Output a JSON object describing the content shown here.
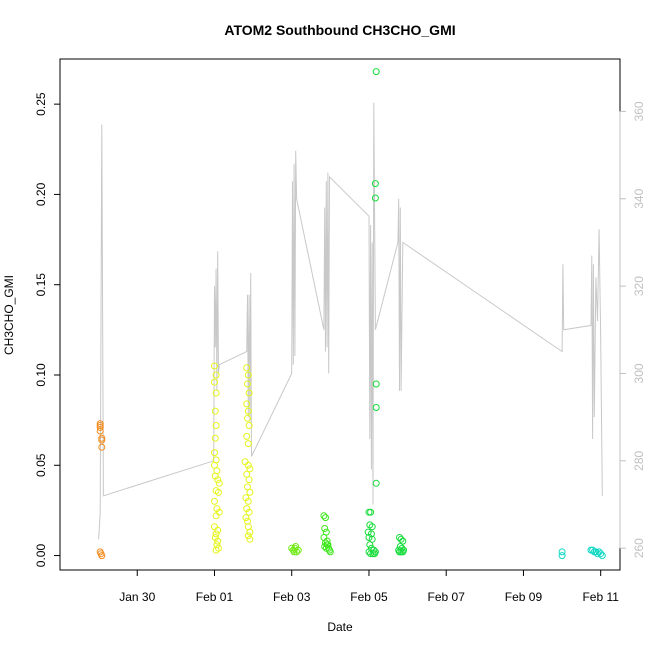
{
  "chart_data": {
    "type": "scatter",
    "title": "ATOM2 Southbound CH3CHO_GMI",
    "xlabel": "Date",
    "ylabel": "CH3CHO_GMI",
    "xlim": [
      "2017-01-28T00:00",
      "2017-02-11T12:00"
    ],
    "ylim": [
      -0.008,
      0.275
    ],
    "y2lim": [
      255,
      372
    ],
    "x_ticks": [
      {
        "date": "2017-01-30",
        "label": "Jan 30"
      },
      {
        "date": "2017-02-01",
        "label": "Feb 01"
      },
      {
        "date": "2017-02-03",
        "label": "Feb 03"
      },
      {
        "date": "2017-02-05",
        "label": "Feb 05"
      },
      {
        "date": "2017-02-07",
        "label": "Feb 07"
      },
      {
        "date": "2017-02-09",
        "label": "Feb 09"
      },
      {
        "date": "2017-02-11",
        "label": "Feb 11"
      }
    ],
    "y_ticks": [
      {
        "value": 0.0,
        "label": "0.00"
      },
      {
        "value": 0.05,
        "label": "0.05"
      },
      {
        "value": 0.1,
        "label": "0.10"
      },
      {
        "value": 0.15,
        "label": "0.15"
      },
      {
        "value": 0.2,
        "label": "0.20"
      },
      {
        "value": 0.25,
        "label": "0.25"
      }
    ],
    "y2_ticks": [
      {
        "value": 260,
        "label": "260"
      },
      {
        "value": 280,
        "label": "280"
      },
      {
        "value": 300,
        "label": "300"
      },
      {
        "value": 320,
        "label": "320"
      },
      {
        "value": 340,
        "label": "340"
      },
      {
        "value": 360,
        "label": "360"
      }
    ],
    "grid": false,
    "line_color": "#c8c8c8",
    "point_groups": [
      {
        "color": "#f28c1e",
        "points": [
          [
            "2017-01-29T01:00",
            0.073
          ],
          [
            "2017-01-29T01:00",
            0.071
          ],
          [
            "2017-01-29T01:00",
            0.069
          ],
          [
            "2017-01-29T01:00",
            0.072
          ],
          [
            "2017-01-29T02:00",
            0.064
          ],
          [
            "2017-01-29T02:00",
            0.065
          ],
          [
            "2017-01-29T02:00",
            0.06
          ],
          [
            "2017-01-29T01:00",
            0.002
          ],
          [
            "2017-01-29T01:30",
            0.001
          ],
          [
            "2017-01-29T02:00",
            0.0
          ]
        ]
      },
      {
        "color": "#e5f51a",
        "points": [
          [
            "2017-02-01T00:00",
            0.105
          ],
          [
            "2017-02-01T01:00",
            0.1
          ],
          [
            "2017-02-01T00:00",
            0.096
          ],
          [
            "2017-02-01T01:00",
            0.09
          ],
          [
            "2017-02-01T00:30",
            0.08
          ],
          [
            "2017-02-01T01:00",
            0.072
          ],
          [
            "2017-02-01T00:30",
            0.065
          ],
          [
            "2017-02-01T00:00",
            0.057
          ],
          [
            "2017-02-01T01:00",
            0.053
          ],
          [
            "2017-02-01T00:00",
            0.05
          ],
          [
            "2017-02-01T01:30",
            0.047
          ],
          [
            "2017-02-01T00:30",
            0.044
          ],
          [
            "2017-02-01T02:00",
            0.042
          ],
          [
            "2017-02-01T03:00",
            0.04
          ],
          [
            "2017-02-01T01:00",
            0.036
          ],
          [
            "2017-02-01T02:30",
            0.035
          ],
          [
            "2017-02-01T00:00",
            0.03
          ],
          [
            "2017-02-01T01:30",
            0.026
          ],
          [
            "2017-02-01T03:00",
            0.024
          ],
          [
            "2017-02-01T01:00",
            0.022
          ],
          [
            "2017-02-01T00:00",
            0.016
          ],
          [
            "2017-02-01T02:00",
            0.014
          ],
          [
            "2017-02-01T01:00",
            0.012
          ],
          [
            "2017-02-01T00:30",
            0.01
          ],
          [
            "2017-02-01T02:00",
            0.008
          ],
          [
            "2017-02-01T01:30",
            0.006
          ],
          [
            "2017-02-01T02:30",
            0.004
          ],
          [
            "2017-02-01T01:00",
            0.003
          ],
          [
            "2017-02-01T20:00",
            0.104
          ],
          [
            "2017-02-01T21:00",
            0.1
          ],
          [
            "2017-02-01T20:30",
            0.095
          ],
          [
            "2017-02-01T21:30",
            0.09
          ],
          [
            "2017-02-01T20:00",
            0.084
          ],
          [
            "2017-02-01T21:00",
            0.08
          ],
          [
            "2017-02-01T20:30",
            0.076
          ],
          [
            "2017-02-01T21:30",
            0.072
          ],
          [
            "2017-02-01T20:00",
            0.066
          ],
          [
            "2017-02-01T21:00",
            0.062
          ],
          [
            "2017-02-01T19:00",
            0.052
          ],
          [
            "2017-02-01T21:00",
            0.05
          ],
          [
            "2017-02-01T22:00",
            0.048
          ],
          [
            "2017-02-01T20:00",
            0.045
          ],
          [
            "2017-02-01T21:30",
            0.042
          ],
          [
            "2017-02-01T20:30",
            0.038
          ],
          [
            "2017-02-01T22:00",
            0.035
          ],
          [
            "2017-02-01T19:30",
            0.032
          ],
          [
            "2017-02-01T21:00",
            0.03
          ],
          [
            "2017-02-01T20:00",
            0.026
          ],
          [
            "2017-02-01T21:30",
            0.024
          ],
          [
            "2017-02-01T19:30",
            0.021
          ],
          [
            "2017-02-01T20:30",
            0.019
          ],
          [
            "2017-02-01T21:00",
            0.016
          ],
          [
            "2017-02-01T22:00",
            0.013
          ],
          [
            "2017-02-01T21:00",
            0.011
          ],
          [
            "2017-02-01T22:00",
            0.009
          ]
        ]
      },
      {
        "color": "#6fea12",
        "points": [
          [
            "2017-02-03T00:00",
            0.004
          ],
          [
            "2017-02-03T01:00",
            0.003
          ],
          [
            "2017-02-03T02:00",
            0.004
          ],
          [
            "2017-02-03T03:00",
            0.002
          ],
          [
            "2017-02-03T04:00",
            0.003
          ],
          [
            "2017-02-03T02:30",
            0.005
          ],
          [
            "2017-02-03T01:30",
            0.002
          ]
        ]
      },
      {
        "color": "#3de81c",
        "points": [
          [
            "2017-02-03T20:00",
            0.022
          ],
          [
            "2017-02-03T21:00",
            0.021
          ],
          [
            "2017-02-03T20:30",
            0.015
          ],
          [
            "2017-02-03T21:30",
            0.013
          ],
          [
            "2017-02-03T20:00",
            0.01
          ],
          [
            "2017-02-03T22:00",
            0.008
          ],
          [
            "2017-02-03T21:00",
            0.007
          ],
          [
            "2017-02-03T22:30",
            0.006
          ],
          [
            "2017-02-03T20:30",
            0.005
          ],
          [
            "2017-02-03T23:00",
            0.004
          ],
          [
            "2017-02-03T21:30",
            0.004
          ],
          [
            "2017-02-03T23:30",
            0.003
          ],
          [
            "2017-02-04T00:00",
            0.002
          ],
          [
            "2017-02-03T22:00",
            0.006
          ]
        ]
      },
      {
        "color": "#16dc3a",
        "points": [
          [
            "2017-02-05T04:30",
            0.268
          ],
          [
            "2017-02-05T04:00",
            0.206
          ],
          [
            "2017-02-05T04:00",
            0.198
          ],
          [
            "2017-02-05T04:30",
            0.095
          ],
          [
            "2017-02-05T04:30",
            0.082
          ],
          [
            "2017-02-05T04:30",
            0.04
          ],
          [
            "2017-02-05T00:00",
            0.024
          ],
          [
            "2017-02-05T01:00",
            0.024
          ],
          [
            "2017-02-05T00:30",
            0.017
          ],
          [
            "2017-02-05T02:00",
            0.016
          ],
          [
            "2017-02-04T23:30",
            0.013
          ],
          [
            "2017-02-05T01:30",
            0.012
          ],
          [
            "2017-02-05T00:00",
            0.01
          ],
          [
            "2017-02-05T02:00",
            0.009
          ],
          [
            "2017-02-05T00:30",
            0.006
          ],
          [
            "2017-02-05T01:30",
            0.004
          ],
          [
            "2017-02-05T03:00",
            0.003
          ],
          [
            "2017-02-05T00:00",
            0.002
          ],
          [
            "2017-02-05T02:30",
            0.001
          ],
          [
            "2017-02-05T04:00",
            0.002
          ],
          [
            "2017-02-05T03:30",
            0.001
          ],
          [
            "2017-02-05T01:00",
            0.001
          ],
          [
            "2017-02-05T19:00",
            0.01
          ],
          [
            "2017-02-05T20:00",
            0.009
          ],
          [
            "2017-02-05T21:00",
            0.008
          ],
          [
            "2017-02-05T19:30",
            0.005
          ],
          [
            "2017-02-05T20:30",
            0.004
          ],
          [
            "2017-02-05T21:30",
            0.003
          ],
          [
            "2017-02-05T19:00",
            0.002
          ],
          [
            "2017-02-05T20:00",
            0.002
          ],
          [
            "2017-02-05T21:00",
            0.002
          ],
          [
            "2017-02-05T18:30",
            0.003
          ]
        ]
      },
      {
        "color": "#11d8c4",
        "points": [
          [
            "2017-02-10T00:00",
            0.002
          ],
          [
            "2017-02-10T00:00",
            0.0
          ],
          [
            "2017-02-10T18:00",
            0.003
          ],
          [
            "2017-02-10T19:00",
            0.003
          ],
          [
            "2017-02-10T20:00",
            0.002
          ],
          [
            "2017-02-10T21:00",
            0.002
          ],
          [
            "2017-02-10T22:00",
            0.001
          ],
          [
            "2017-02-10T23:00",
            0.002
          ],
          [
            "2017-02-11T00:00",
            0.001
          ],
          [
            "2017-02-11T01:00",
            0.0
          ]
        ]
      }
    ],
    "line_series": [
      [
        "2017-01-29T00:00",
        262
      ],
      [
        "2017-01-29T01:00",
        268
      ],
      [
        "2017-01-29T02:00",
        357
      ],
      [
        "2017-01-29T03:00",
        272
      ],
      [
        "2017-01-31T23:30",
        280
      ],
      [
        "2017-02-01T00:00",
        320
      ],
      [
        "2017-02-01T00:30",
        306
      ],
      [
        "2017-02-01T01:00",
        324
      ],
      [
        "2017-02-01T01:30",
        296
      ],
      [
        "2017-02-01T02:00",
        328
      ],
      [
        "2017-02-01T02:30",
        300
      ],
      [
        "2017-02-01T03:00",
        302
      ],
      [
        "2017-02-01T20:00",
        305
      ],
      [
        "2017-02-01T20:30",
        318
      ],
      [
        "2017-02-01T21:00",
        290
      ],
      [
        "2017-02-01T21:30",
        318
      ],
      [
        "2017-02-01T22:00",
        289
      ],
      [
        "2017-02-01T22:30",
        323
      ],
      [
        "2017-02-01T23:00",
        281
      ],
      [
        "2017-02-03T00:00",
        300
      ],
      [
        "2017-02-03T00:30",
        344
      ],
      [
        "2017-02-03T01:00",
        302
      ],
      [
        "2017-02-03T01:30",
        348
      ],
      [
        "2017-02-03T02:00",
        304
      ],
      [
        "2017-02-03T02:30",
        351
      ],
      [
        "2017-02-03T03:00",
        340
      ],
      [
        "2017-02-03T20:00",
        310
      ],
      [
        "2017-02-03T20:30",
        338
      ],
      [
        "2017-02-03T21:00",
        305
      ],
      [
        "2017-02-03T21:30",
        344
      ],
      [
        "2017-02-03T22:00",
        306
      ],
      [
        "2017-02-03T22:30",
        346
      ],
      [
        "2017-02-03T23:00",
        300
      ],
      [
        "2017-02-03T23:30",
        345
      ],
      [
        "2017-02-05T00:00",
        336
      ],
      [
        "2017-02-05T00:30",
        285
      ],
      [
        "2017-02-05T01:00",
        334
      ],
      [
        "2017-02-05T01:30",
        278
      ],
      [
        "2017-02-05T02:00",
        330
      ],
      [
        "2017-02-05T02:30",
        270
      ],
      [
        "2017-02-05T03:00",
        362
      ],
      [
        "2017-02-05T03:30",
        336
      ],
      [
        "2017-02-05T04:00",
        310
      ],
      [
        "2017-02-05T18:00",
        330
      ],
      [
        "2017-02-05T18:30",
        340
      ],
      [
        "2017-02-05T19:00",
        296
      ],
      [
        "2017-02-05T19:30",
        338
      ],
      [
        "2017-02-05T20:00",
        296
      ],
      [
        "2017-02-05T21:00",
        330
      ],
      [
        "2017-02-10T00:00",
        305
      ],
      [
        "2017-02-10T00:30",
        325
      ],
      [
        "2017-02-10T01:00",
        310
      ],
      [
        "2017-02-10T18:00",
        311
      ],
      [
        "2017-02-10T18:30",
        327
      ],
      [
        "2017-02-10T19:00",
        285
      ],
      [
        "2017-02-10T19:30",
        325
      ],
      [
        "2017-02-10T20:00",
        290
      ],
      [
        "2017-02-10T21:00",
        322
      ],
      [
        "2017-02-10T22:00",
        312
      ],
      [
        "2017-02-10T23:00",
        333
      ],
      [
        "2017-02-11T00:00",
        308
      ],
      [
        "2017-02-11T01:00",
        272
      ]
    ]
  }
}
